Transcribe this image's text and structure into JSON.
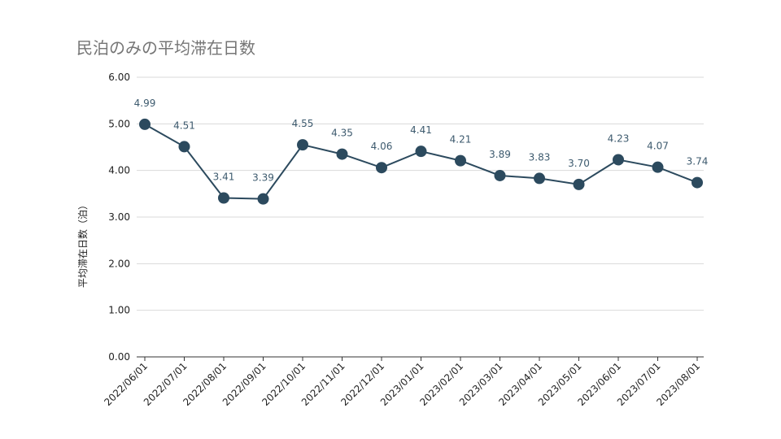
{
  "chart_data": {
    "type": "line",
    "title": "民泊のみの平均滞在日数",
    "xlabel": "",
    "ylabel": "平均滞在日数（泊）",
    "ylim": [
      0,
      6
    ],
    "yticks": [
      "0.00",
      "1.00",
      "2.00",
      "3.00",
      "4.00",
      "5.00",
      "6.00"
    ],
    "grid": true,
    "categories": [
      "2022/06/01",
      "2022/07/01",
      "2022/08/01",
      "2022/09/01",
      "2022/10/01",
      "2022/11/01",
      "2022/12/01",
      "2023/01/01",
      "2023/02/01",
      "2023/03/01",
      "2023/04/01",
      "2023/05/01",
      "2023/06/01",
      "2023/07/01",
      "2023/08/01"
    ],
    "series": [
      {
        "values": [
          4.99,
          4.51,
          3.41,
          3.39,
          4.55,
          4.35,
          4.06,
          4.41,
          4.21,
          3.89,
          3.83,
          3.7,
          4.23,
          4.07,
          3.74
        ],
        "labels": [
          "4.99",
          "4.51",
          "3.41",
          "3.39",
          "4.55",
          "4.35",
          "4.06",
          "4.41",
          "4.21",
          "3.89",
          "3.83",
          "3.70",
          "4.23",
          "4.07",
          "3.74"
        ],
        "color": "#2c4a5e"
      }
    ]
  }
}
